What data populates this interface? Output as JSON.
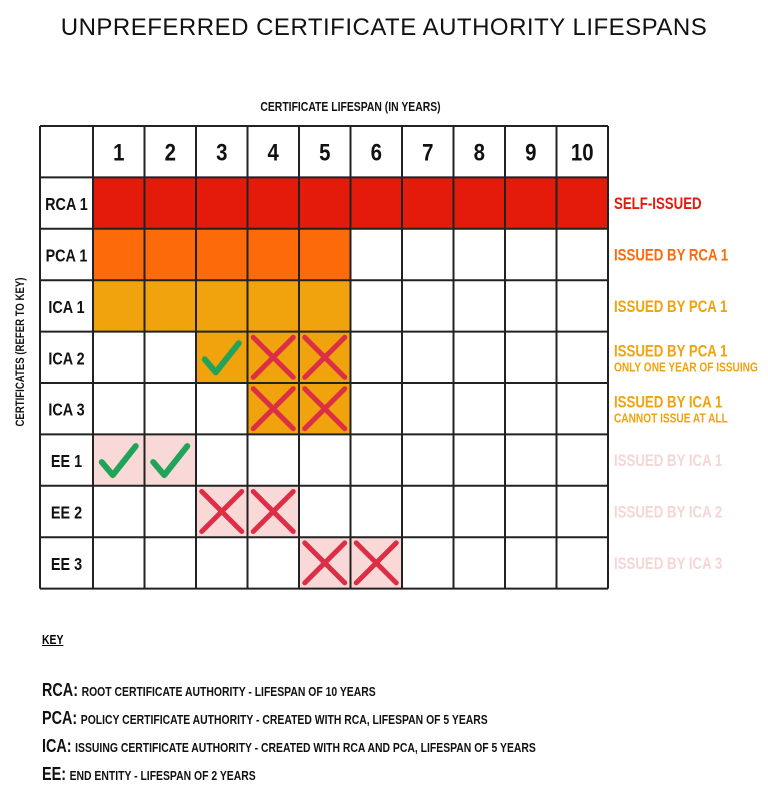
{
  "title": "UNPREFERRED CERTIFICATE AUTHORITY LIFESPANS",
  "chart_data": {
    "type": "table",
    "xlabel": "CERTIFICATE LIFESPAN (IN YEARS)",
    "ylabel": "CERTIFICATES (REFER TO KEY)",
    "columns": [
      "1",
      "2",
      "3",
      "4",
      "5",
      "6",
      "7",
      "8",
      "9",
      "10"
    ],
    "colors": {
      "red": "#e41b0b",
      "orange": "#fc6a0a",
      "amber": "#f0a30c",
      "pink": "#f9d9d8",
      "check": "#22a35a",
      "cross": "#dc2f45",
      "grid": "#222222"
    },
    "rows": [
      {
        "label": "RCA 1",
        "fill": "red",
        "years": [
          1,
          2,
          3,
          4,
          5,
          6,
          7,
          8,
          9,
          10
        ],
        "marks": {},
        "note": "SELF-ISSUED",
        "sub": "",
        "note_color": "#e41b0b"
      },
      {
        "label": "PCA 1",
        "fill": "orange",
        "years": [
          1,
          2,
          3,
          4,
          5
        ],
        "marks": {},
        "note": "ISSUED BY RCA 1",
        "sub": "",
        "note_color": "#fc6a0a"
      },
      {
        "label": "ICA 1",
        "fill": "amber",
        "years": [
          1,
          2,
          3,
          4,
          5
        ],
        "marks": {},
        "note": "ISSUED BY PCA 1",
        "sub": "",
        "note_color": "#f0a30c"
      },
      {
        "label": "ICA 2",
        "fill": "amber",
        "years": [
          3,
          4,
          5
        ],
        "marks": {
          "3": "check",
          "4": "cross",
          "5": "cross"
        },
        "note": "ISSUED BY PCA 1",
        "sub": "ONLY ONE YEAR OF ISSUING",
        "note_color": "#f0a30c"
      },
      {
        "label": "ICA 3",
        "fill": "amber",
        "years": [
          4,
          5
        ],
        "marks": {
          "4": "cross",
          "5": "cross"
        },
        "note": "ISSUED BY ICA 1",
        "sub": "CANNOT ISSUE AT ALL",
        "note_color": "#f0a30c"
      },
      {
        "label": "EE 1",
        "fill": "pink",
        "years": [
          1,
          2
        ],
        "marks": {
          "1": "check",
          "2": "check"
        },
        "note": "ISSUED BY ICA 1",
        "sub": "",
        "note_color": "#f6d6d4"
      },
      {
        "label": "EE 2",
        "fill": "pink",
        "years": [
          3,
          4
        ],
        "marks": {
          "3": "cross",
          "4": "cross"
        },
        "note": "ISSUED BY ICA 2",
        "sub": "",
        "note_color": "#f6d6d4"
      },
      {
        "label": "EE 3",
        "fill": "pink",
        "years": [
          5,
          6
        ],
        "marks": {
          "5": "cross",
          "6": "cross"
        },
        "note": "ISSUED BY ICA 3",
        "sub": "",
        "note_color": "#f6d6d4"
      }
    ]
  },
  "key": {
    "title": "KEY",
    "items": [
      {
        "abbr": "RCA:",
        "desc": "ROOT CERTIFICATE AUTHORITY - LIFESPAN OF 10 YEARS"
      },
      {
        "abbr": "PCA:",
        "desc": "POLICY CERTIFICATE AUTHORITY - CREATED WITH RCA, LIFESPAN OF 5 YEARS"
      },
      {
        "abbr": "ICA:",
        "desc": "ISSUING CERTIFICATE AUTHORITY - CREATED WITH RCA AND PCA, LIFESPAN OF 5 YEARS"
      },
      {
        "abbr": "EE:",
        "desc": "END ENTITY - LIFESPAN OF 2 YEARS"
      }
    ]
  }
}
